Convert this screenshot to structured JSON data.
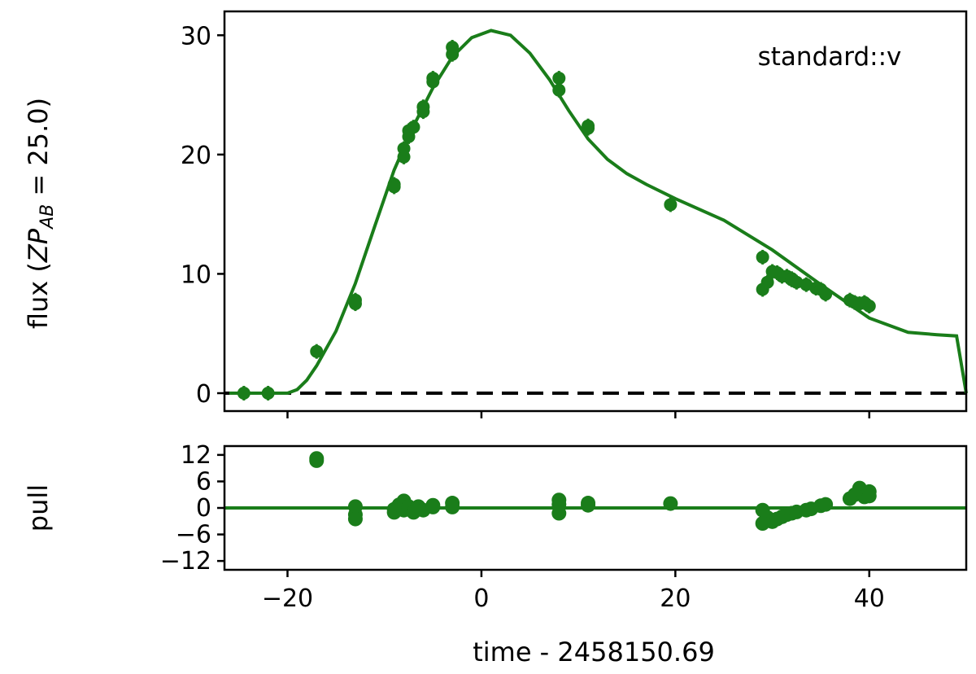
{
  "chart_data": [
    {
      "type": "scatter",
      "panel": "flux",
      "annotation": "standard::v",
      "xlabel": "time - 2458150.69",
      "ylabel_prefix": "flux (",
      "ylabel_math": "ZP",
      "ylabel_sub": "AB",
      "ylabel_suffix": " = 25.0)",
      "xlim": [
        -26.5,
        50
      ],
      "ylim": [
        -1.5,
        32
      ],
      "yticks": [
        0,
        10,
        20,
        30
      ],
      "xticks": [
        -20,
        0,
        20,
        40
      ],
      "reference_line": 0,
      "color": "#1a7d1a",
      "series": [
        {
          "kind": "points",
          "x": [
            -24.5,
            -22,
            -17,
            -13,
            -13,
            -9,
            -9,
            -8,
            -8,
            -7.5,
            -7.5,
            -7,
            -6,
            -6,
            -5,
            -5,
            -3,
            -3,
            8,
            8,
            11,
            11,
            19.5,
            29,
            29,
            29.5,
            30,
            30.5,
            31,
            31.5,
            32,
            32,
            32.5,
            33.5,
            34.5,
            35,
            35.5,
            38,
            38.5,
            39,
            39.5,
            40
          ],
          "y": [
            0,
            0,
            3.5,
            7.8,
            7.5,
            17.5,
            17.3,
            19.8,
            20.5,
            21.5,
            22,
            22.3,
            23.6,
            24,
            26.1,
            26.4,
            28.4,
            29,
            26.4,
            25.4,
            22.4,
            22.2,
            15.8,
            11.4,
            8.7,
            9.3,
            10.2,
            10.1,
            9.8,
            9.8,
            9.6,
            9.5,
            9.3,
            9.1,
            8.8,
            8.7,
            8.3,
            7.8,
            7.6,
            7.5,
            7.6,
            7.3
          ]
        },
        {
          "kind": "model",
          "x": [
            -26,
            -22,
            -20,
            -19,
            -18,
            -17,
            -15,
            -13,
            -11,
            -9,
            -7,
            -5,
            -3,
            -1,
            1,
            3,
            5,
            7,
            9,
            11,
            13,
            15,
            17,
            20,
            25,
            30,
            35,
            40,
            44,
            47,
            49,
            50
          ],
          "y": [
            0,
            0,
            0,
            0.3,
            1.1,
            2.3,
            5.2,
            9.2,
            14,
            18.7,
            22.4,
            25.6,
            28.2,
            29.8,
            30.4,
            30,
            28.5,
            26.3,
            23.7,
            21.3,
            19.6,
            18.4,
            17.5,
            16.3,
            14.5,
            12,
            9.1,
            6.3,
            5.1,
            4.9,
            4.8,
            0
          ]
        }
      ]
    },
    {
      "type": "scatter",
      "panel": "pull",
      "ylabel": "pull",
      "xlim": [
        -26.5,
        50
      ],
      "ylim": [
        -14,
        14
      ],
      "yticks": [
        -12,
        -6,
        0,
        6,
        12
      ],
      "ytick_labels": [
        "−12",
        "−6",
        "0",
        "6",
        "12"
      ],
      "xticks": [
        -20,
        0,
        20,
        40
      ],
      "xtick_labels": [
        "−20",
        "0",
        "20",
        "40"
      ],
      "reference_line": 0,
      "color": "#1a7d1a",
      "x": [
        -17,
        -17,
        -13,
        -13,
        -13,
        -9,
        -9,
        -8.5,
        -8,
        -8,
        -7.5,
        -7,
        -6.5,
        -6,
        -5,
        -5,
        -3,
        -3,
        8,
        8,
        8,
        11,
        11,
        19.5,
        29,
        29,
        29.5,
        30,
        30.5,
        31,
        31.5,
        32,
        32.5,
        33.5,
        34,
        35,
        35.5,
        38,
        38.5,
        39,
        39,
        39.5,
        40,
        40
      ],
      "y": [
        11.2,
        10.7,
        0.3,
        -1.5,
        -2.5,
        -0.3,
        -1,
        0.7,
        1.6,
        -0.5,
        0.3,
        -1,
        0.3,
        -0.5,
        0.6,
        0.2,
        1.1,
        0.2,
        1.8,
        0.8,
        -1.2,
        1.1,
        0.6,
        1,
        -0.5,
        -3.5,
        -2.2,
        -3.1,
        -2.5,
        -2,
        -1.5,
        -1.2,
        -0.9,
        -0.5,
        -0.2,
        0.5,
        0.8,
        2.1,
        3,
        3.5,
        4.5,
        2.5,
        3.7,
        2.7
      ]
    }
  ]
}
